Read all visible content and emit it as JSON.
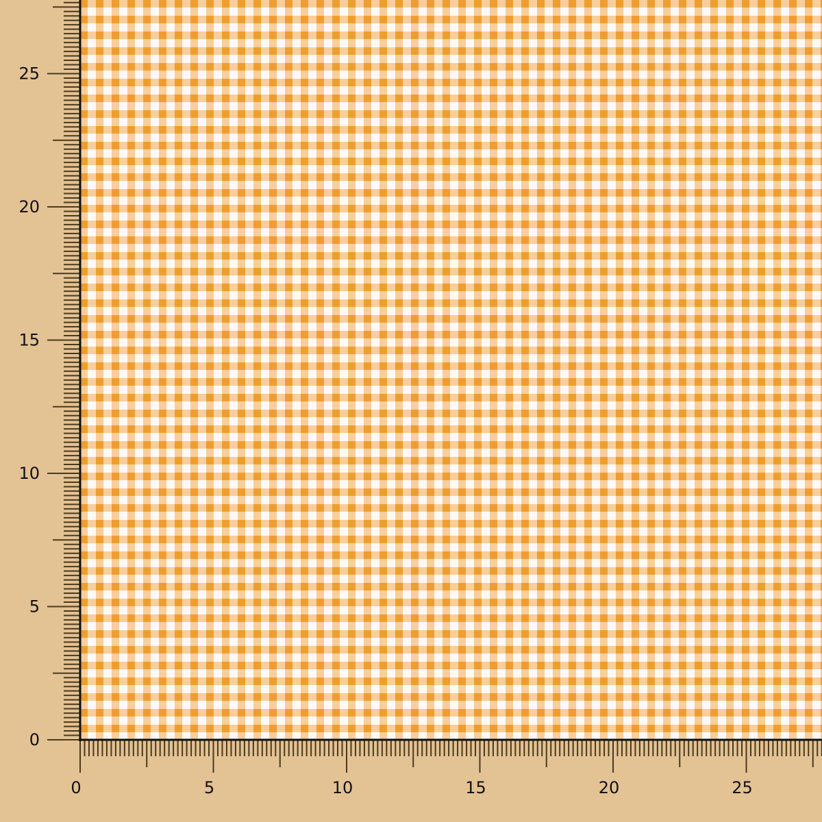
{
  "swatch": {
    "pattern": "gingham check",
    "colors": {
      "background": "#E3C294",
      "check_dark": "#EE9E2E",
      "check_light": "#F5C892",
      "fabric_white": "#FFF9F6",
      "ruler_ticks": "#4A3A1C",
      "frame": "#111111"
    }
  },
  "rulers": {
    "unit_ticks_per_label": 5,
    "x_labels": [
      "0",
      "5",
      "10",
      "15",
      "20",
      "25"
    ],
    "y_labels": [
      "0",
      "5",
      "10",
      "15",
      "20",
      "25"
    ]
  }
}
